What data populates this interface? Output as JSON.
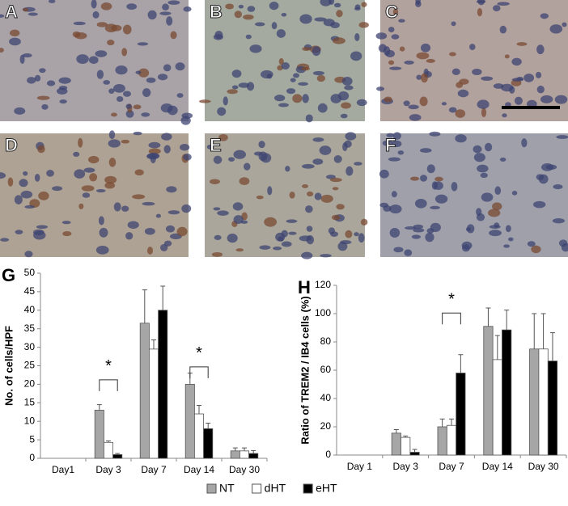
{
  "panels": {
    "labels": [
      "A",
      "B",
      "C",
      "D",
      "E",
      "F"
    ]
  },
  "legend_position": "bottom",
  "chart_data": [
    {
      "type": "bar",
      "panel": "G",
      "ylabel": "No. of cells/HPF",
      "categories": [
        "Day1",
        "Day 3",
        "Day 7",
        "Day 14",
        "Day 30"
      ],
      "ylim": [
        0,
        50
      ],
      "yticks": [
        0,
        5,
        10,
        15,
        20,
        25,
        30,
        35,
        40,
        45,
        50
      ],
      "series": [
        {
          "name": "NT",
          "color": "#a6a6a6",
          "values": [
            0,
            13,
            36.5,
            20,
            2
          ],
          "errors": [
            0,
            1.5,
            9,
            3,
            0.8
          ]
        },
        {
          "name": "dHT",
          "color": "#ffffff",
          "values": [
            0,
            4.3,
            29.5,
            12,
            2
          ],
          "errors": [
            0,
            0.4,
            2.5,
            2.3,
            0.8
          ]
        },
        {
          "name": "eHT",
          "color": "#000000",
          "values": [
            0,
            1,
            40,
            8,
            1.3
          ],
          "errors": [
            0,
            0.3,
            6.5,
            1.5,
            0.8
          ]
        }
      ],
      "annotations": [
        {
          "text": "*",
          "x": 1,
          "y": 26
        },
        {
          "text": "*",
          "x": 3,
          "y": 29.5
        }
      ]
    },
    {
      "type": "bar",
      "panel": "H",
      "ylabel": "Ratio of TREM2 / IB4 cells (%)",
      "categories": [
        "Day 1",
        "Day 3",
        "Day 7",
        "Day 14",
        "Day 30"
      ],
      "ylim": [
        0,
        120
      ],
      "yticks": [
        0,
        20,
        40,
        60,
        80,
        100,
        120
      ],
      "series": [
        {
          "name": "NT",
          "color": "#a6a6a6",
          "values": [
            0,
            15.5,
            20,
            91,
            75
          ],
          "errors": [
            0,
            2.5,
            5.5,
            13,
            25
          ]
        },
        {
          "name": "dHT",
          "color": "#ffffff",
          "values": [
            0,
            12.5,
            21,
            67.5,
            75
          ],
          "errors": [
            0,
            1,
            4.5,
            17,
            25
          ]
        },
        {
          "name": "eHT",
          "color": "#000000",
          "values": [
            0,
            2,
            58,
            88.5,
            66.5
          ],
          "errors": [
            0,
            2,
            13,
            14,
            20
          ]
        }
      ],
      "annotations": [
        {
          "text": "*",
          "x": 2,
          "y": 113
        }
      ]
    }
  ]
}
